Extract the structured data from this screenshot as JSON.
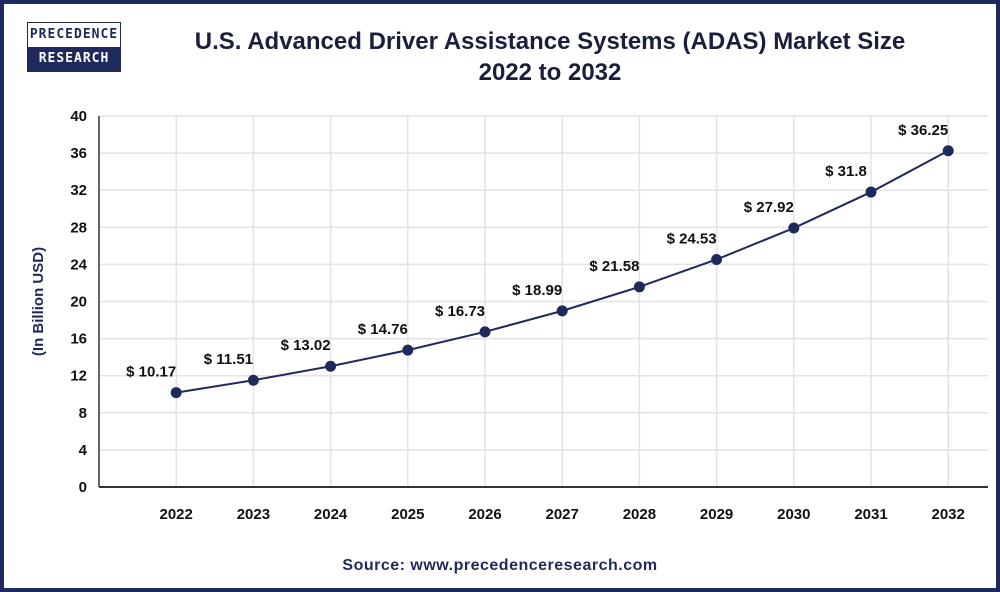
{
  "logo": {
    "line1": "PRECEDENCE",
    "line2": "RESEARCH"
  },
  "title": {
    "line1": "U.S. Advanced Driver Assistance Systems (ADAS) Market Size",
    "line2": "2022 to 2032"
  },
  "source": "Source: www.precedenceresearch.com",
  "colors": {
    "line": "#1f2a5c",
    "frame": "#1f2a5c",
    "grid": "#e3e3e3"
  },
  "chart_data": {
    "type": "line",
    "title": "U.S. Advanced Driver Assistance Systems (ADAS) Market Size 2022 to 2032",
    "ylabel": "(In Billion USD)",
    "xlabel": "",
    "categories": [
      "2022",
      "2023",
      "2024",
      "2025",
      "2026",
      "2027",
      "2028",
      "2029",
      "2030",
      "2031",
      "2032"
    ],
    "values": [
      10.17,
      11.51,
      13.02,
      14.76,
      16.73,
      18.99,
      21.58,
      24.53,
      27.92,
      31.8,
      36.25
    ],
    "data_labels": [
      "$ 10.17",
      "$ 11.51",
      "$ 13.02",
      "$ 14.76",
      "$ 16.73",
      "$ 18.99",
      "$ 21.58",
      "$ 24.53",
      "$ 27.92",
      "$ 31.8",
      "$ 36.25"
    ],
    "ylim": [
      0,
      40
    ],
    "yticks": [
      "0",
      "4",
      "8",
      "12",
      "16",
      "20",
      "24",
      "28",
      "32",
      "36",
      "40"
    ],
    "grid": true,
    "legend": "none"
  }
}
